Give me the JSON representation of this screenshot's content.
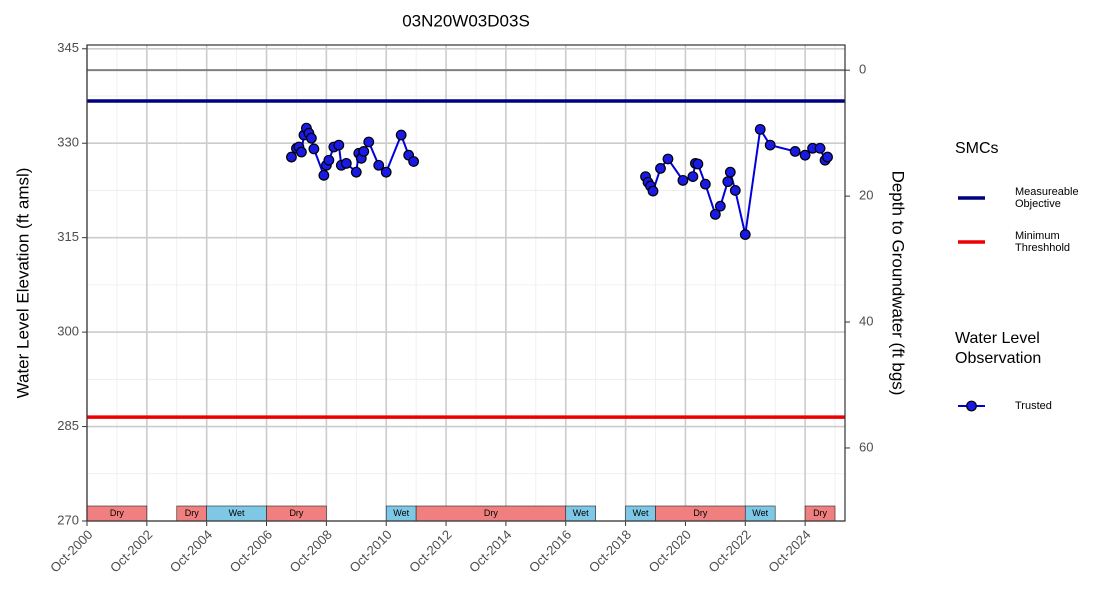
{
  "chart_data": {
    "type": "line",
    "title": "03N20W03D03S",
    "y_label": "Water Level Elevation (ft amsl)",
    "y2_label": "Depth to Groundwater (ft bgs)",
    "xlim": [
      "2000-10",
      "2026-02"
    ],
    "xticks": [
      {
        "value": "2000-10",
        "label": "Oct-2000"
      },
      {
        "value": "2002-10",
        "label": "Oct-2002"
      },
      {
        "value": "2004-10",
        "label": "Oct-2004"
      },
      {
        "value": "2006-10",
        "label": "Oct-2006"
      },
      {
        "value": "2008-10",
        "label": "Oct-2008"
      },
      {
        "value": "2010-10",
        "label": "Oct-2010"
      },
      {
        "value": "2012-10",
        "label": "Oct-2012"
      },
      {
        "value": "2014-10",
        "label": "Oct-2014"
      },
      {
        "value": "2016-10",
        "label": "Oct-2016"
      },
      {
        "value": "2018-10",
        "label": "Oct-2018"
      },
      {
        "value": "2020-10",
        "label": "Oct-2020"
      },
      {
        "value": "2022-10",
        "label": "Oct-2022"
      },
      {
        "value": "2024-10",
        "label": "Oct-2024"
      }
    ],
    "ylim": [
      270,
      345.6
    ],
    "yticks": [
      270,
      285,
      300,
      315,
      330,
      345
    ],
    "y2lim": [
      71.6,
      -4
    ],
    "y2ticks": [
      0,
      20,
      40,
      60
    ],
    "grid": true,
    "minor_grid": true,
    "ground_surface": {
      "value": 341.6,
      "color": "#808080"
    },
    "smc_legend_title": "SMCs",
    "hlines": [
      {
        "name": "Measureable Objective",
        "value": 336.7,
        "color": "#000080"
      },
      {
        "name": "Minimum Threshhold",
        "value": 286.5,
        "color": "#ee0000"
      }
    ],
    "series_legend_title": "Water Level Observation",
    "x": [
      "2007-08",
      "2007-10",
      "2007-11",
      "2007-12",
      "2008-01",
      "2008-02",
      "2008-03",
      "2008-04",
      "2008-05",
      "2008-09",
      "2008-10",
      "2008-11",
      "2009-01",
      "2009-03",
      "2009-04",
      "2009-06",
      "2009-10",
      "2009-11",
      "2009-12",
      "2010-01",
      "2010-03",
      "2010-07",
      "2010-10",
      "2011-04",
      "2011-07",
      "2011-09",
      null,
      "2019-06",
      "2019-07",
      "2019-08",
      "2019-09",
      "2019-12",
      "2020-03",
      "2020-09",
      "2021-01",
      "2021-02",
      "2021-03",
      "2021-06",
      "2021-10",
      "2021-12",
      "2022-03",
      "2022-04",
      "2022-06",
      "2022-10",
      "2023-04",
      "2023-08",
      "2024-06",
      "2024-10",
      "2025-01",
      "2025-04",
      "2025-06",
      "2025-07"
    ],
    "series": [
      {
        "name": "Trusted",
        "color": "#0000dd",
        "point_color": "#1a1ae6",
        "values": [
          327.8,
          329.2,
          329.4,
          328.6,
          331.3,
          332.4,
          331.6,
          330.8,
          329.1,
          324.9,
          326.5,
          327.3,
          329.4,
          329.7,
          326.5,
          326.8,
          325.4,
          328.4,
          327.6,
          328.7,
          330.2,
          326.5,
          325.4,
          331.3,
          328.1,
          327.1,
          null,
          324.7,
          323.8,
          323.2,
          322.4,
          326.0,
          327.5,
          324.1,
          324.7,
          326.8,
          326.7,
          323.5,
          318.7,
          320.0,
          323.9,
          325.4,
          322.5,
          315.5,
          332.2,
          329.7,
          328.7,
          328.1,
          329.2,
          329.2,
          327.3,
          327.8
        ]
      }
    ],
    "period_colors": {
      "Dry": "#f08080",
      "Wet": "#7ec8e6"
    },
    "periods": [
      {
        "label": "Dry",
        "start": "2000-10",
        "end": "2002-10"
      },
      {
        "label": "Dry",
        "start": "2003-10",
        "end": "2004-10"
      },
      {
        "label": "Wet",
        "start": "2004-10",
        "end": "2006-10"
      },
      {
        "label": "Dry",
        "start": "2006-10",
        "end": "2008-10"
      },
      {
        "label": "Wet",
        "start": "2010-10",
        "end": "2011-10"
      },
      {
        "label": "Dry",
        "start": "2011-10",
        "end": "2016-10"
      },
      {
        "label": "Wet",
        "start": "2016-10",
        "end": "2017-10"
      },
      {
        "label": "Wet",
        "start": "2018-10",
        "end": "2019-10"
      },
      {
        "label": "Dry",
        "start": "2019-10",
        "end": "2022-10"
      },
      {
        "label": "Wet",
        "start": "2022-10",
        "end": "2023-10"
      },
      {
        "label": "Dry",
        "start": "2024-10",
        "end": "2025-10"
      }
    ]
  }
}
